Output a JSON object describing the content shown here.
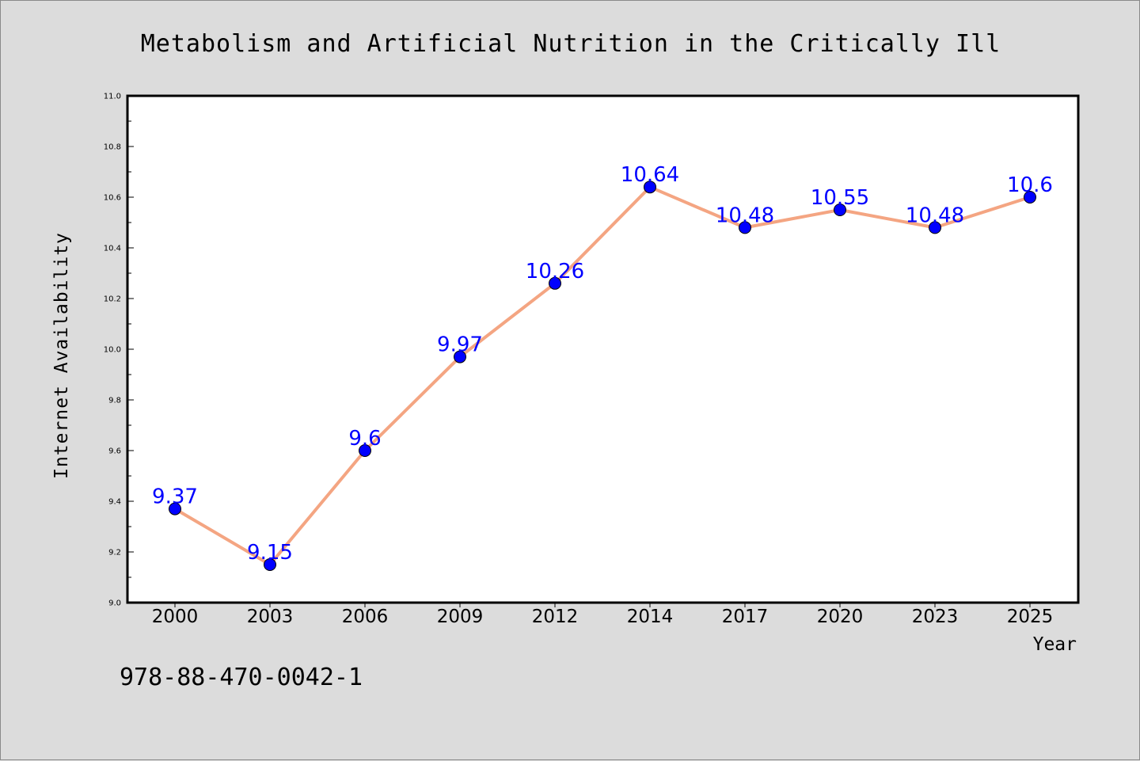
{
  "chart_data": {
    "type": "line",
    "title": "Metabolism and Artificial Nutrition in the Critically Ill",
    "xlabel": "Year",
    "ylabel": "Internet Availability",
    "categories": [
      "2000",
      "2003",
      "2006",
      "2009",
      "2012",
      "2014",
      "2017",
      "2020",
      "2023",
      "2025"
    ],
    "series": [
      {
        "values": [
          9.37,
          9.15,
          9.6,
          9.97,
          10.26,
          10.64,
          10.48,
          10.55,
          10.48,
          10.6
        ],
        "labels": [
          "9.37",
          "9.15",
          "9.6",
          "9.97",
          "10.26",
          "10.64",
          "10.48",
          "10.55",
          "10.48",
          "10.6"
        ],
        "line_color": "#f4a582",
        "marker_color": "#0000ff",
        "label_color": "#0000ff"
      }
    ],
    "ylim": [
      9.0,
      11.0
    ],
    "yticks": [
      "9.0",
      "9.2",
      "9.4",
      "9.6",
      "9.8",
      "10.0",
      "10.2",
      "10.4",
      "10.6",
      "10.8",
      "11.0"
    ],
    "grid": false,
    "legend": "none"
  },
  "footnote": "978-88-470-0042-1",
  "colors": {
    "background": "#dcdcdc",
    "plot_background": "#ffffff",
    "axis": "#000000"
  }
}
